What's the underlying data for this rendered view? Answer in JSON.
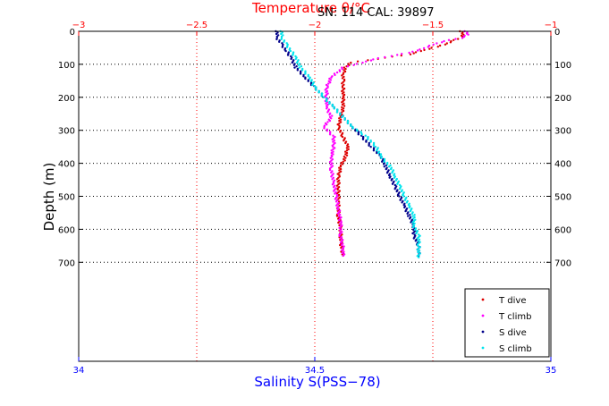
{
  "header": {
    "info_text": "SN: 114  CAL: 39897"
  },
  "chart_data": {
    "type": "scatter",
    "title": "Temperature θ/°C",
    "xlabel": "Salinity S(PSS−78)",
    "ylabel": "Depth (m)",
    "top_axis": {
      "label": "Temperature θ/°C",
      "range": [
        -3,
        -1
      ],
      "ticks": [
        -3,
        -2.5,
        -2,
        -1.5,
        -1
      ],
      "tick_labels": [
        "−3",
        "−2.5",
        "−2",
        "−1.5",
        "−1"
      ],
      "color": "#ff0000"
    },
    "bottom_axis": {
      "label": "Salinity S(PSS−78)",
      "range": [
        34,
        35
      ],
      "ticks": [
        34,
        34.5,
        35
      ],
      "tick_labels": [
        "34",
        "34.5",
        "35"
      ],
      "color": "#0000ff"
    },
    "y_axis": {
      "range": [
        0,
        1000
      ],
      "reversed": true,
      "ticks": [
        0,
        100,
        200,
        300,
        400,
        500,
        600,
        700
      ],
      "tick_labels": [
        "0",
        "100",
        "200",
        "300",
        "400",
        "500",
        "600",
        "700"
      ]
    },
    "grid": true,
    "legend": "bottom-right",
    "series": [
      {
        "name": "T dive",
        "axis": "top",
        "color": "#dd0000",
        "points": [
          [
            -1.38,
            0
          ],
          [
            -1.37,
            10
          ],
          [
            -1.38,
            20
          ],
          [
            -1.42,
            30
          ],
          [
            -1.45,
            40
          ],
          [
            -1.5,
            50
          ],
          [
            -1.55,
            60
          ],
          [
            -1.6,
            70
          ],
          [
            -1.7,
            80
          ],
          [
            -1.85,
            95
          ],
          [
            -1.87,
            110
          ],
          [
            -1.88,
            130
          ],
          [
            -1.88,
            150
          ],
          [
            -1.88,
            170
          ],
          [
            -1.88,
            200
          ],
          [
            -1.88,
            230
          ],
          [
            -1.89,
            260
          ],
          [
            -1.9,
            290
          ],
          [
            -1.88,
            320
          ],
          [
            -1.86,
            350
          ],
          [
            -1.87,
            380
          ],
          [
            -1.89,
            410
          ],
          [
            -1.9,
            440
          ],
          [
            -1.9,
            480
          ],
          [
            -1.9,
            520
          ],
          [
            -1.9,
            560
          ],
          [
            -1.89,
            600
          ],
          [
            -1.89,
            640
          ],
          [
            -1.88,
            680
          ]
        ]
      },
      {
        "name": "T climb",
        "axis": "top",
        "color": "#ff00ff",
        "points": [
          [
            -1.36,
            0
          ],
          [
            -1.35,
            10
          ],
          [
            -1.38,
            20
          ],
          [
            -1.45,
            30
          ],
          [
            -1.5,
            40
          ],
          [
            -1.55,
            55
          ],
          [
            -1.6,
            65
          ],
          [
            -1.68,
            75
          ],
          [
            -1.75,
            85
          ],
          [
            -1.8,
            95
          ],
          [
            -1.88,
            110
          ],
          [
            -1.93,
            140
          ],
          [
            -1.95,
            170
          ],
          [
            -1.95,
            200
          ],
          [
            -1.95,
            230
          ],
          [
            -1.93,
            260
          ],
          [
            -1.96,
            290
          ],
          [
            -1.92,
            320
          ],
          [
            -1.92,
            350
          ],
          [
            -1.93,
            380
          ],
          [
            -1.93,
            420
          ],
          [
            -1.92,
            460
          ],
          [
            -1.91,
            500
          ],
          [
            -1.9,
            540
          ],
          [
            -1.89,
            580
          ],
          [
            -1.89,
            620
          ],
          [
            -1.88,
            660
          ],
          [
            -1.88,
            680
          ]
        ]
      },
      {
        "name": "S dive",
        "axis": "bottom",
        "color": "#00008b",
        "points": [
          [
            34.42,
            0
          ],
          [
            34.42,
            20
          ],
          [
            34.43,
            40
          ],
          [
            34.44,
            60
          ],
          [
            34.45,
            80
          ],
          [
            34.46,
            110
          ],
          [
            34.48,
            140
          ],
          [
            34.5,
            170
          ],
          [
            34.52,
            200
          ],
          [
            34.54,
            230
          ],
          [
            34.56,
            260
          ],
          [
            34.58,
            290
          ],
          [
            34.6,
            320
          ],
          [
            34.62,
            350
          ],
          [
            34.64,
            380
          ],
          [
            34.65,
            410
          ],
          [
            34.66,
            440
          ],
          [
            34.67,
            470
          ],
          [
            34.68,
            500
          ],
          [
            34.69,
            530
          ],
          [
            34.7,
            560
          ],
          [
            34.71,
            590
          ],
          [
            34.71,
            620
          ],
          [
            34.72,
            650
          ],
          [
            34.72,
            680
          ]
        ]
      },
      {
        "name": "S climb",
        "axis": "bottom",
        "color": "#00e5ee",
        "points": [
          [
            34.43,
            0
          ],
          [
            34.43,
            20
          ],
          [
            34.44,
            40
          ],
          [
            34.45,
            60
          ],
          [
            34.46,
            80
          ],
          [
            34.47,
            110
          ],
          [
            34.49,
            140
          ],
          [
            34.5,
            170
          ],
          [
            34.52,
            200
          ],
          [
            34.54,
            230
          ],
          [
            34.56,
            260
          ],
          [
            34.58,
            290
          ],
          [
            34.61,
            320
          ],
          [
            34.63,
            350
          ],
          [
            34.64,
            380
          ],
          [
            34.66,
            410
          ],
          [
            34.67,
            440
          ],
          [
            34.68,
            470
          ],
          [
            34.69,
            500
          ],
          [
            34.7,
            530
          ],
          [
            34.71,
            560
          ],
          [
            34.71,
            590
          ],
          [
            34.72,
            620
          ],
          [
            34.72,
            650
          ],
          [
            34.72,
            685
          ]
        ]
      }
    ]
  }
}
